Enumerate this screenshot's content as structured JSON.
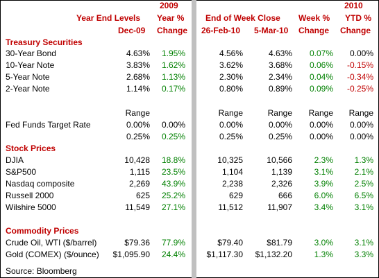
{
  "headers": {
    "year_end_levels": "Year End Levels",
    "y2009": "2009",
    "year_pct": "Year %",
    "dec09": "Dec-09",
    "change1": "Change",
    "end_of_week_close": "End of Week Close",
    "week_pct": "Week %",
    "y2010": "2010",
    "ytd_pct": "YTD %",
    "feb26": "26-Feb-10",
    "mar5": "5-Mar-10",
    "change2": "Change",
    "change3": "Change"
  },
  "sections": {
    "treasury": "Treasury Securities",
    "stocks": "Stock Prices",
    "commodities": "Commodity Prices"
  },
  "range_label": "Range",
  "fed_funds_label": "Fed Funds Target Rate",
  "source": "Source: Bloomberg",
  "treasury_rows": [
    {
      "label": "30-Year Bond",
      "dec09": "4.63%",
      "ychg": "1.95%",
      "feb26": "4.56%",
      "mar5": "4.63%",
      "wchg": "0.07%",
      "ytd": "0.00%"
    },
    {
      "label": "10-Year Note",
      "dec09": "3.83%",
      "ychg": "1.62%",
      "feb26": "3.62%",
      "mar5": "3.68%",
      "wchg": "0.06%",
      "ytd": "-0.15%"
    },
    {
      "label": "5-Year Note",
      "dec09": "2.68%",
      "ychg": "1.13%",
      "feb26": "2.30%",
      "mar5": "2.34%",
      "wchg": "0.04%",
      "ytd": "-0.34%"
    },
    {
      "label": "2-Year Note",
      "dec09": "1.14%",
      "ychg": "0.17%",
      "feb26": "0.80%",
      "mar5": "0.89%",
      "wchg": "0.09%",
      "ytd": "-0.25%"
    }
  ],
  "fed_rows": [
    {
      "dec09": "0.00%",
      "ychg": "0.00%",
      "feb26": "0.00%",
      "mar5": "0.00%",
      "wchg": "0.00%",
      "ytd": "0.00%"
    },
    {
      "dec09": "0.25%",
      "ychg": "0.25%",
      "feb26": "0.25%",
      "mar5": "0.25%",
      "wchg": "0.00%",
      "ytd": "0.00%"
    }
  ],
  "stock_rows": [
    {
      "label": "DJIA",
      "dec09": "10,428",
      "ychg": "18.8%",
      "feb26": "10,325",
      "mar5": "10,566",
      "wchg": "2.3%",
      "ytd": "1.3%"
    },
    {
      "label": "S&P500",
      "dec09": "1,115",
      "ychg": "23.5%",
      "feb26": "1,104",
      "mar5": "1,139",
      "wchg": "3.1%",
      "ytd": "2.1%"
    },
    {
      "label": "Nasdaq composite",
      "dec09": "2,269",
      "ychg": "43.9%",
      "feb26": "2,238",
      "mar5": "2,326",
      "wchg": "3.9%",
      "ytd": "2.5%"
    },
    {
      "label": "Russell 2000",
      "dec09": "625",
      "ychg": "25.2%",
      "feb26": "629",
      "mar5": "666",
      "wchg": "6.0%",
      "ytd": "6.5%"
    },
    {
      "label": "Wilshire 5000",
      "dec09": "11,549",
      "ychg": "27.1%",
      "feb26": "11,512",
      "mar5": "11,907",
      "wchg": "3.4%",
      "ytd": "3.1%"
    }
  ],
  "commodity_rows": [
    {
      "label": "Crude Oil, WTI ($/barrel)",
      "dec09": "$79.36",
      "ychg": "77.9%",
      "feb26": "$79.40",
      "mar5": "$81.79",
      "wchg": "3.0%",
      "ytd": "3.1%"
    },
    {
      "label": "Gold (COMEX) ($/ounce)",
      "dec09": "$1,095.90",
      "ychg": "24.4%",
      "feb26": "$1,117.30",
      "mar5": "$1,132.20",
      "wchg": "1.3%",
      "ytd": "3.3%"
    }
  ],
  "colors": {
    "header_red": "#c00000",
    "positive_green": "#008000",
    "negative_red": "#c00000",
    "divider_gray": "#c0c0c0"
  }
}
